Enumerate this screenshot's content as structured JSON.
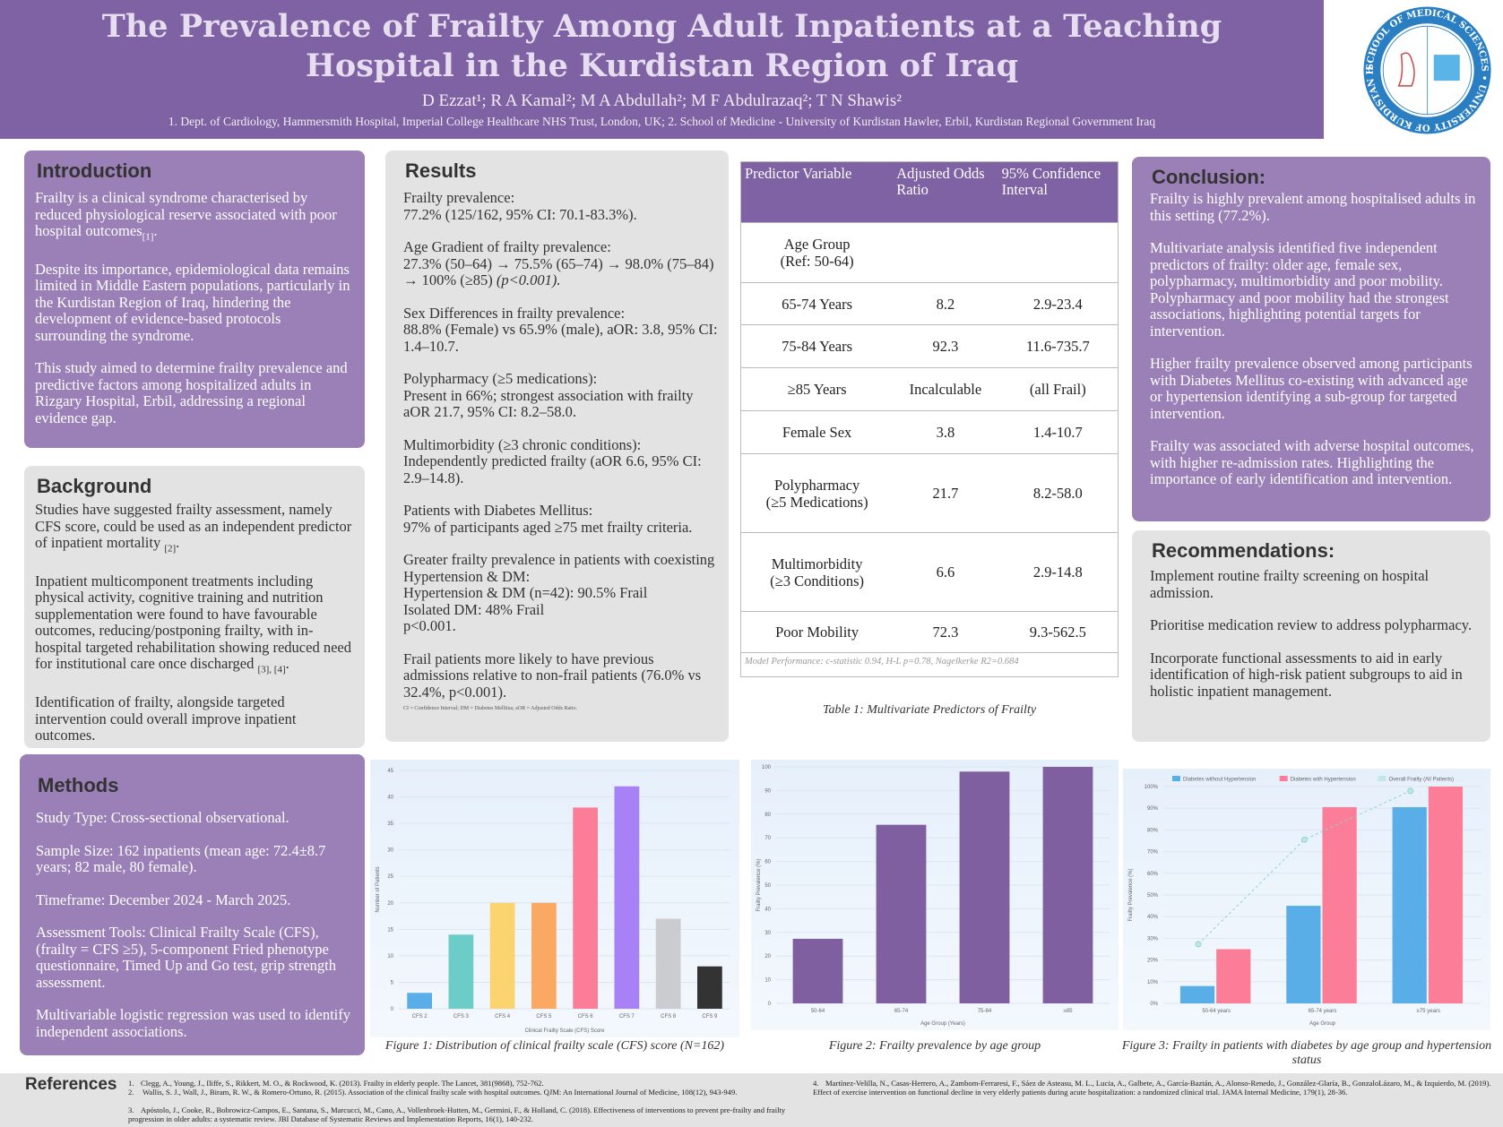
{
  "header": {
    "title": "The Prevalence of Frailty Among Adult Inpatients at a Teaching Hospital in the Kurdistan Region of Iraq",
    "authors": "D Ezzat¹; R A Kamal²; M A Abdullah²; M F Abdulrazaq²; T N Shawis²",
    "affiliations": "1. Dept. of Cardiology, Hammersmith Hospital, Imperial College Healthcare NHS Trust, London, UK; 2. School of Medicine - University of Kurdistan Hawler, Erbil, Kurdistan Regional Government Iraq",
    "logo_text": "SCHOOL OF MEDICAL SCIENCES • UNIVERSITY OF KURDISTAN HEWLÊR"
  },
  "colors": {
    "purple": "#7f62a3",
    "box_purple": "#9a80b6",
    "gray": "#e3e3e3"
  },
  "introduction": {
    "heading": "Introduction",
    "p1": "Frailty is a clinical syndrome characterised by reduced physiological reserve associated with poor hospital outcomes",
    "p1_ref": "[1]",
    "p1_end": ".",
    "p2": " Despite its importance, epidemiological data remains limited in Middle Eastern populations, particularly in the Kurdistan Region of Iraq, hindering the development of evidence-based protocols surrounding the syndrome.",
    "p3": "This study aimed to determine frailty prevalence and predictive factors among hospitalized adults in Rizgary Hospital, Erbil, addressing a regional evidence gap."
  },
  "background": {
    "heading": "Background",
    "p1": "Studies have suggested frailty assessment, namely CFS score, could be used as an independent predictor of inpatient mortality ",
    "p1_ref": "[2]",
    "p1_end": ".",
    "p2": "Inpatient multicomponent treatments including physical activity, cognitive training and nutrition supplementation were found to have favourable outcomes, reducing/postponing frailty, with in-hospital targeted rehabilitation showing reduced need for institutional care once discharged ",
    "p2_ref": "[3], [4]",
    "p2_end": ".",
    "p3": "Identification of frailty, alongside targeted intervention could overall improve inpatient outcomes."
  },
  "methods": {
    "heading": "Methods",
    "items": [
      "Study Type: Cross-sectional observational.",
      "Sample Size: 162 inpatients (mean age: 72.4±8.7 years; 82 male, 80 female).",
      "Timeframe: December 2024 - March 2025.",
      "Assessment Tools: Clinical Frailty Scale (CFS), (frailty = CFS ≥5), 5-component Fried phenotype questionnaire, Timed Up and Go test, grip strength assessment.",
      "Multivariable logistic regression was used to identify independent associations."
    ]
  },
  "results": {
    "heading": "Results",
    "items": [
      {
        "title": "Frailty prevalence:",
        "body": "77.2% (125/162, 95% CI: 70.1-83.3%)."
      },
      {
        "title": "Age Gradient of frailty prevalence:",
        "body": "27.3% (50–64) → 75.5% (65–74) → 98.0% (75–84) → 100% (≥85) ",
        "italic": "(p<0.001)."
      },
      {
        "title": "Sex Differences in frailty prevalence:",
        "body": "88.8% (Female) vs 65.9% (male), aOR: 3.8, 95% CI: 1.4–10.7."
      },
      {
        "title": "Polypharmacy (≥5 medications):",
        "body": "Present in 66%; strongest association with frailty aOR 21.7, 95% CI: 8.2–58.0."
      },
      {
        "title": "Multimorbidity (≥3 chronic conditions):",
        "body": "Independently predicted frailty (aOR 6.6, 95% CI: 2.9–14.8)."
      },
      {
        "title": "Patients with Diabetes Mellitus:",
        "body": "97% of participants aged ≥75 met frailty criteria."
      },
      {
        "title": "Greater frailty prevalence in patients with coexisting Hypertension & DM:",
        "body": "Hypertension & DM (n=42): 90.5% Frail\nIsolated DM: 48% Frail\np<0.001."
      },
      {
        "title": "Frail patients more likely to have previous admissions relative to non-frail patients (76.0% vs 32.4%, p<0.001).",
        "body": ""
      }
    ],
    "footnote": "CI = Confidence Interval; DM = Diabetes Mellitus; aOR = Adjusted Odds Ratio."
  },
  "table": {
    "headers": [
      "Predictor Variable",
      "Adjusted Odds Ratio",
      "95% Confidence Interval"
    ],
    "rows": [
      [
        "Age Group\n(Ref: 50-64)",
        "",
        ""
      ],
      [
        "65-74 Years",
        "8.2",
        "2.9-23.4"
      ],
      [
        "75-84 Years",
        "92.3",
        "11.6-735.7"
      ],
      [
        "≥85 Years",
        "Incalculable",
        "(all Frail)"
      ],
      [
        "Female Sex",
        "3.8",
        "1.4-10.7"
      ],
      [
        "Polypharmacy\n(≥5 Medications)",
        "21.7",
        "8.2-58.0"
      ],
      [
        "Multimorbidity\n(≥3 Conditions)",
        "6.6",
        "2.9-14.8"
      ],
      [
        "Poor Mobility",
        "72.3",
        "9.3-562.5"
      ]
    ],
    "note": "Model Performance: c-statistic 0.94, H-L p=0.78, Nagelkerke R2=0.684",
    "caption": "Table 1: Multivariate Predictors of Frailty"
  },
  "conclusion": {
    "heading": "Conclusion:",
    "items": [
      "Frailty is highly prevalent among hospitalised adults in this setting (77.2%).",
      "Multivariate analysis identified five independent predictors of frailty: older age, female sex, polypharmacy, multimorbidity and poor mobility. Polypharmacy and poor mobility had the strongest associations, highlighting potential targets for intervention.",
      "Higher frailty prevalence observed among participants with Diabetes Mellitus co-existing with advanced age or hypertension identifying a sub-group for targeted intervention.",
      "Frailty was associated with adverse hospital outcomes, with higher re-admission rates. Highlighting the importance of early identification and intervention."
    ]
  },
  "recommendations": {
    "heading": "Recommendations:",
    "items": [
      "Implement routine frailty screening on hospital admission.",
      "Prioritise medication review to address polypharmacy.",
      "Incorporate functional assessments to aid in early identification of high-risk patient subgroups to aid in holistic inpatient management."
    ]
  },
  "chart_data": [
    {
      "type": "bar",
      "categories": [
        "CFS 2",
        "CFS 3",
        "CFS 4",
        "CFS 5",
        "CFS 6",
        "CFS 7",
        "CFS 8",
        "CFS 9"
      ],
      "values": [
        3,
        14,
        20,
        20,
        38,
        42,
        17,
        8
      ],
      "colors": [
        "#5aaee8",
        "#6ccdc8",
        "#fbd36f",
        "#fba862",
        "#fc7d98",
        "#a881f7",
        "#cbccd0",
        "#333333"
      ],
      "xlabel": "Clinical Frailty Scale (CFS) Score",
      "ylabel": "Number of Patients",
      "ylim": [
        0,
        45
      ],
      "yticks": [
        0,
        5,
        10,
        15,
        20,
        25,
        30,
        35,
        40,
        45
      ],
      "grid": true,
      "caption": "Figure 1:  Distribution of clinical frailty scale (CFS) score (N=162)"
    },
    {
      "type": "bar",
      "categories": [
        "50-64",
        "65-74",
        "75-84",
        "≥85"
      ],
      "values": [
        27.3,
        75.5,
        98.0,
        100
      ],
      "colors": [
        "#7f5f9f"
      ],
      "xlabel": "Age Group (Years)",
      "ylabel": "Frailty Prevalence (%)",
      "ylim": [
        0,
        100
      ],
      "yticks": [
        0,
        10,
        20,
        30,
        40,
        50,
        60,
        70,
        80,
        90,
        100
      ],
      "grid": true,
      "caption": "Figure 2:  Frailty prevalence by age group"
    },
    {
      "type": "bar",
      "categories": [
        "50-64 years",
        "65-74 years",
        "≥75 years"
      ],
      "series": [
        {
          "name": "Diabetes without Hypertension",
          "values": [
            8,
            45,
            90.5
          ],
          "color": "#5aaee8"
        },
        {
          "name": "Diabetes with Hypertension",
          "values": [
            25,
            90.5,
            100
          ],
          "color": "#fc7d98"
        }
      ],
      "line": {
        "name": "Overall Frailty (All Patients)",
        "values": [
          27.3,
          75.5,
          98
        ],
        "color": "#8fd3d0"
      },
      "xlabel": "Age Group",
      "ylabel": "Frailty Prevalence (%)",
      "ylim": [
        0,
        100
      ],
      "yticks": [
        "0%",
        "10%",
        "20%",
        "30%",
        "40%",
        "50%",
        "60%",
        "70%",
        "80%",
        "90%",
        "100%"
      ],
      "grid": true,
      "legend": "top",
      "caption": "Figure 3:  Frailty in patients with diabetes by age group and hypertension status"
    }
  ],
  "references": {
    "heading": "References",
    "items": [
      "Clegg, A., Young, J., Iliffe, S., Rikkert, M. O., & Rockwood, K. (2013). Frailty in elderly people. The Lancet, 381(9868), 752-762.",
      " Wallis, S. J., Wall, J., Biram, R. W., & Romero-Ortuno, R. (2015). Association of the clinical frailty scale with hospital outcomes. QJM: An International Journal of Medicine, 108(12), 943-949.",
      "Apóstolo, J., Cooke, R., Bobrowicz-Campos, E., Santana, S., Marcucci, M., Cano, A., Vollenbroek-Hutten, M., Germini, F., & Holland, C. (2018). Effectiveness of interventions to prevent pre-frailty and frailty progression in older adults: a systematic review. JBI Database of Systematic Reviews and Implementation Reports, 16(1), 140-232.",
      "Martínez-Velilla, N., Casas-Herrero, A., Zambom-Ferraresi, F., Sáez de Asteasu, M. L., Lucia, A., Galbete, A., García-Baztán, A., Alonso-Renedo, J., González-Glaría, B., GonzaloLázaro, M., & Izquierdo, M. (2019). Effect of exercise intervention on functional decline in very elderly patients during acute hospitalization: a randomized clinical trial. JAMA Internal Medicine, 179(1), 28-36."
    ]
  }
}
